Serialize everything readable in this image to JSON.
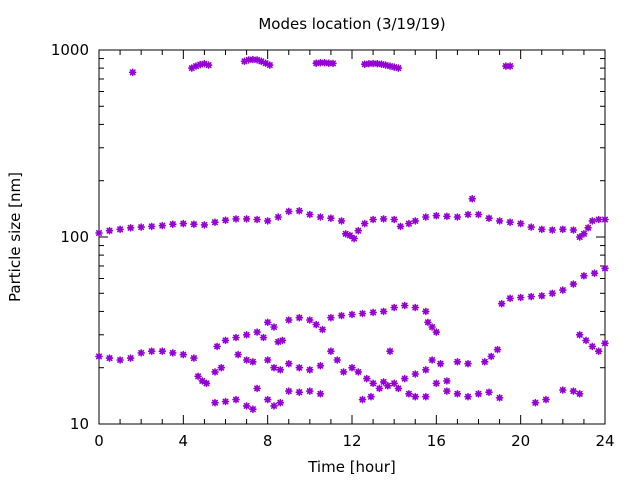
{
  "chart_data": {
    "type": "scatter",
    "title": "Modes location (3/19/19)",
    "xlabel": "Time [hour]",
    "ylabel": "Particle size [nm]",
    "xlim": [
      0,
      24
    ],
    "ylim": [
      10,
      1000
    ],
    "yscale": "log",
    "x_ticks": [
      0,
      4,
      8,
      12,
      16,
      20,
      24
    ],
    "x_tick_labels": [
      "0",
      "4",
      "8",
      "12",
      "16",
      "20",
      "24"
    ],
    "y_ticks": [
      10,
      100,
      1000
    ],
    "y_tick_labels": [
      "10",
      "100",
      "1000"
    ],
    "grid": false,
    "legend": "none",
    "marker_color": "#9400d3",
    "series": [
      {
        "points": [
          [
            1.6,
            760
          ],
          [
            4.4,
            800
          ],
          [
            4.6,
            820
          ],
          [
            4.8,
            835
          ],
          [
            5.0,
            845
          ],
          [
            5.2,
            830
          ],
          [
            6.9,
            870
          ],
          [
            7.1,
            885
          ],
          [
            7.3,
            890
          ],
          [
            7.5,
            885
          ],
          [
            7.7,
            870
          ],
          [
            7.9,
            850
          ],
          [
            8.1,
            830
          ],
          [
            10.3,
            850
          ],
          [
            10.5,
            855
          ],
          [
            10.7,
            855
          ],
          [
            10.9,
            850
          ],
          [
            11.1,
            848
          ],
          [
            12.6,
            840
          ],
          [
            12.8,
            845
          ],
          [
            13.0,
            848
          ],
          [
            13.2,
            845
          ],
          [
            13.4,
            840
          ],
          [
            13.6,
            830
          ],
          [
            13.8,
            820
          ],
          [
            14.0,
            810
          ],
          [
            14.2,
            800
          ],
          [
            19.3,
            820
          ],
          [
            19.5,
            820
          ],
          [
            0.0,
            105
          ],
          [
            0.5,
            108
          ],
          [
            1.0,
            110
          ],
          [
            1.5,
            112
          ],
          [
            2.0,
            113
          ],
          [
            2.5,
            114
          ],
          [
            3.0,
            115
          ],
          [
            3.5,
            117
          ],
          [
            4.0,
            118
          ],
          [
            4.5,
            117
          ],
          [
            5.0,
            116
          ],
          [
            5.5,
            120
          ],
          [
            6.0,
            123
          ],
          [
            6.5,
            125
          ],
          [
            7.0,
            125
          ],
          [
            7.5,
            124
          ],
          [
            8.0,
            122
          ],
          [
            8.5,
            128
          ],
          [
            9.0,
            137
          ],
          [
            9.5,
            138
          ],
          [
            10.0,
            132
          ],
          [
            10.5,
            128
          ],
          [
            11.0,
            126
          ],
          [
            11.5,
            122
          ],
          [
            11.7,
            104
          ],
          [
            11.9,
            102
          ],
          [
            12.1,
            98
          ],
          [
            12.3,
            108
          ],
          [
            12.6,
            118
          ],
          [
            13.0,
            124
          ],
          [
            13.5,
            125
          ],
          [
            14.0,
            124
          ],
          [
            14.3,
            114
          ],
          [
            14.7,
            118
          ],
          [
            15.0,
            122
          ],
          [
            15.5,
            128
          ],
          [
            16.0,
            130
          ],
          [
            16.5,
            129
          ],
          [
            17.0,
            128
          ],
          [
            17.5,
            132
          ],
          [
            17.7,
            160
          ],
          [
            18.0,
            132
          ],
          [
            18.5,
            126
          ],
          [
            19.0,
            122
          ],
          [
            19.5,
            120
          ],
          [
            20.0,
            118
          ],
          [
            20.5,
            113
          ],
          [
            21.0,
            110
          ],
          [
            21.5,
            109
          ],
          [
            22.0,
            110
          ],
          [
            22.5,
            109
          ],
          [
            22.8,
            100
          ],
          [
            23.0,
            104
          ],
          [
            23.2,
            112
          ],
          [
            23.4,
            122
          ],
          [
            23.7,
            124
          ],
          [
            24.0,
            124
          ],
          [
            0.0,
            23.0
          ],
          [
            0.5,
            22.5
          ],
          [
            1.0,
            22.0
          ],
          [
            1.5,
            22.5
          ],
          [
            2.0,
            24.0
          ],
          [
            2.5,
            24.5
          ],
          [
            3.0,
            24.5
          ],
          [
            3.5,
            24.0
          ],
          [
            4.0,
            23.5
          ],
          [
            4.5,
            22.5
          ],
          [
            4.7,
            18.0
          ],
          [
            4.9,
            17.0
          ],
          [
            5.1,
            16.5
          ],
          [
            5.5,
            19.0
          ],
          [
            5.8,
            20.0
          ],
          [
            5.6,
            26.0
          ],
          [
            6.0,
            28.0
          ],
          [
            6.5,
            29.0
          ],
          [
            7.0,
            30.0
          ],
          [
            7.5,
            31.0
          ],
          [
            7.8,
            29.0
          ],
          [
            8.0,
            35.0
          ],
          [
            8.3,
            33.0
          ],
          [
            8.5,
            27.5
          ],
          [
            8.7,
            28.0
          ],
          [
            9.0,
            36.0
          ],
          [
            9.5,
            37.0
          ],
          [
            10.0,
            36.0
          ],
          [
            10.3,
            34.0
          ],
          [
            10.6,
            32.0
          ],
          [
            11.0,
            37.0
          ],
          [
            11.5,
            38.0
          ],
          [
            12.0,
            38.5
          ],
          [
            12.5,
            39.0
          ],
          [
            13.0,
            39.5
          ],
          [
            13.5,
            40.0
          ],
          [
            14.0,
            42.0
          ],
          [
            14.5,
            43.0
          ],
          [
            15.0,
            42.0
          ],
          [
            15.5,
            40.0
          ],
          [
            15.6,
            35.0
          ],
          [
            15.8,
            33.0
          ],
          [
            16.0,
            31.0
          ],
          [
            18.3,
            21.5
          ],
          [
            18.6,
            23.0
          ],
          [
            18.9,
            25.0
          ],
          [
            19.1,
            44.0
          ],
          [
            19.5,
            47.0
          ],
          [
            20.0,
            47.5
          ],
          [
            20.5,
            48.0
          ],
          [
            21.0,
            48.5
          ],
          [
            21.5,
            50.0
          ],
          [
            22.0,
            52.0
          ],
          [
            22.5,
            56.0
          ],
          [
            23.0,
            62.0
          ],
          [
            23.5,
            64.0
          ],
          [
            24.0,
            68.0
          ],
          [
            22.8,
            30.0
          ],
          [
            23.1,
            28.0
          ],
          [
            23.4,
            26.0
          ],
          [
            23.7,
            24.5
          ],
          [
            24.0,
            27.0
          ],
          [
            6.6,
            23.5
          ],
          [
            7.0,
            22.0
          ],
          [
            7.3,
            21.5
          ],
          [
            8.0,
            22.0
          ],
          [
            8.3,
            20.0
          ],
          [
            8.6,
            19.5
          ],
          [
            9.0,
            21.0
          ],
          [
            9.5,
            20.0
          ],
          [
            10.0,
            19.5
          ],
          [
            10.5,
            20.5
          ],
          [
            11.0,
            24.5
          ],
          [
            11.3,
            22.0
          ],
          [
            11.6,
            19.0
          ],
          [
            12.0,
            20.0
          ],
          [
            12.3,
            19.0
          ],
          [
            12.7,
            17.5
          ],
          [
            13.0,
            16.5
          ],
          [
            13.5,
            16.8
          ],
          [
            14.0,
            16.5
          ],
          [
            14.5,
            17.5
          ],
          [
            15.0,
            18.5
          ],
          [
            15.5,
            19.5
          ],
          [
            15.8,
            22.0
          ],
          [
            16.2,
            21.0
          ],
          [
            16.5,
            17.0
          ],
          [
            17.0,
            21.5
          ],
          [
            17.5,
            21.0
          ],
          [
            13.8,
            24.5
          ],
          [
            5.5,
            13.0
          ],
          [
            6.0,
            13.2
          ],
          [
            6.5,
            13.5
          ],
          [
            7.0,
            12.5
          ],
          [
            7.3,
            12.0
          ],
          [
            7.5,
            15.5
          ],
          [
            8.0,
            13.5
          ],
          [
            8.3,
            12.5
          ],
          [
            8.6,
            13.0
          ],
          [
            9.0,
            15.0
          ],
          [
            9.5,
            14.8
          ],
          [
            10.0,
            15.0
          ],
          [
            10.5,
            14.5
          ],
          [
            12.5,
            13.5
          ],
          [
            12.9,
            14.0
          ],
          [
            13.3,
            15.5
          ],
          [
            13.7,
            16.0
          ],
          [
            14.2,
            15.5
          ],
          [
            14.7,
            14.5
          ],
          [
            15.0,
            14.0
          ],
          [
            15.5,
            14.0
          ],
          [
            16.0,
            16.5
          ],
          [
            16.5,
            15.0
          ],
          [
            17.0,
            14.5
          ],
          [
            17.5,
            14.0
          ],
          [
            18.0,
            14.5
          ],
          [
            18.5,
            14.8
          ],
          [
            19.0,
            13.8
          ],
          [
            20.7,
            13.0
          ],
          [
            21.2,
            13.5
          ],
          [
            22.0,
            15.2
          ],
          [
            22.5,
            15.0
          ],
          [
            22.8,
            14.5
          ]
        ]
      }
    ]
  }
}
